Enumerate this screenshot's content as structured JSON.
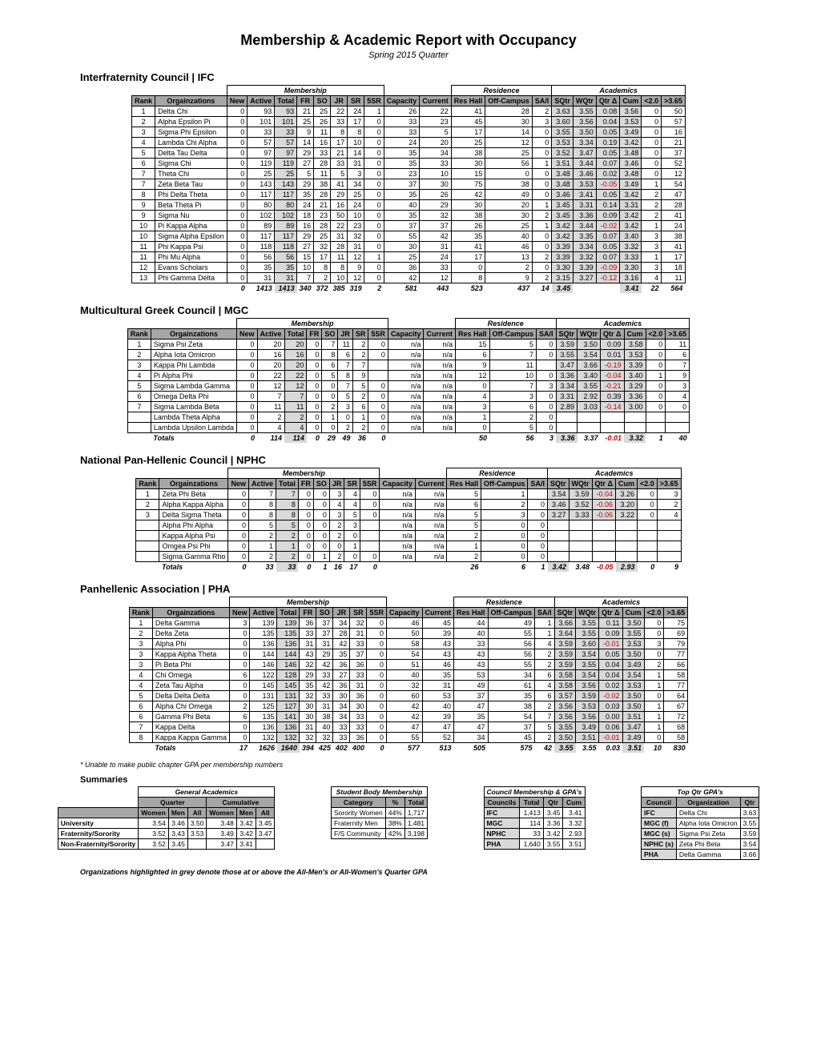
{
  "title": "Membership & Academic Report with Occupancy",
  "subtitle": "Spring 2015 Quarter",
  "col_hdrs": [
    "Rank",
    "Orgainzations",
    "New",
    "Active",
    "Total",
    "FR",
    "SO",
    "JR",
    "SR",
    "5SR",
    "Capacity",
    "Current",
    "Res Hall",
    "Off-Campus",
    "SA/I",
    "SQtr",
    "WQtr",
    "Qtr Δ",
    "Cum",
    "<2.0",
    ">3.65"
  ],
  "sections": [
    {
      "name": "Interfraternity Council | IFC",
      "rows": [
        [
          1,
          "Delta Chi",
          0,
          93,
          93,
          21,
          25,
          22,
          24,
          1,
          26,
          22,
          41,
          28,
          2,
          3.63,
          3.55,
          0.08,
          3.56,
          0,
          50
        ],
        [
          2,
          "Alpha Epsilon Pi",
          0,
          101,
          101,
          25,
          26,
          33,
          17,
          0,
          33,
          23,
          45,
          30,
          3,
          3.6,
          3.56,
          0.04,
          3.53,
          0,
          57
        ],
        [
          3,
          "Sigma Phi Epsilon",
          0,
          33,
          33,
          9,
          11,
          8,
          8,
          0,
          33,
          5,
          17,
          14,
          0,
          3.55,
          3.5,
          0.05,
          3.49,
          0,
          16
        ],
        [
          4,
          "Lambda Chi Alpha",
          0,
          57,
          57,
          14,
          16,
          17,
          10,
          0,
          24,
          20,
          25,
          12,
          0,
          3.53,
          3.34,
          0.19,
          3.42,
          0,
          21
        ],
        [
          5,
          "Delta Tau Delta",
          0,
          97,
          97,
          29,
          33,
          21,
          14,
          0,
          35,
          34,
          38,
          25,
          0,
          3.52,
          3.47,
          0.05,
          3.48,
          0,
          37
        ],
        [
          6,
          "Sigma Chi",
          0,
          119,
          119,
          27,
          28,
          33,
          31,
          0,
          35,
          33,
          30,
          56,
          1,
          3.51,
          3.44,
          0.07,
          3.46,
          0,
          52
        ],
        [
          7,
          "Theta Chi",
          0,
          25,
          25,
          5,
          11,
          5,
          3,
          0,
          23,
          10,
          15,
          0,
          0,
          3.48,
          3.46,
          0.02,
          3.48,
          0,
          12
        ],
        [
          7,
          "Zeta Beta Tau",
          0,
          143,
          143,
          29,
          38,
          41,
          34,
          0,
          37,
          30,
          75,
          38,
          0,
          3.48,
          3.53,
          -0.05,
          3.49,
          1,
          54
        ],
        [
          8,
          "Phi Delta Theta",
          0,
          117,
          117,
          35,
          28,
          29,
          25,
          0,
          35,
          26,
          42,
          49,
          0,
          3.46,
          3.41,
          0.05,
          3.42,
          2,
          47
        ],
        [
          9,
          "Beta Theta Pi",
          0,
          80,
          80,
          24,
          21,
          16,
          24,
          0,
          40,
          29,
          30,
          20,
          1,
          3.45,
          3.31,
          0.14,
          3.31,
          2,
          28
        ],
        [
          9,
          "Sigma Nu",
          0,
          102,
          102,
          18,
          23,
          50,
          10,
          0,
          35,
          32,
          38,
          30,
          2,
          3.45,
          3.36,
          0.09,
          3.42,
          2,
          41
        ],
        [
          10,
          "Pi Kappa Alpha",
          0,
          89,
          89,
          16,
          28,
          22,
          23,
          0,
          37,
          37,
          26,
          25,
          1,
          3.42,
          3.44,
          -0.02,
          3.42,
          1,
          24
        ],
        [
          10,
          "Sigma Alpha Epsilon",
          0,
          117,
          117,
          29,
          25,
          31,
          32,
          0,
          55,
          42,
          35,
          40,
          0,
          3.42,
          3.35,
          0.07,
          3.4,
          3,
          38
        ],
        [
          11,
          "Phi Kappa Psi",
          0,
          118,
          118,
          27,
          32,
          28,
          31,
          0,
          30,
          31,
          41,
          46,
          0,
          3.39,
          3.34,
          0.05,
          3.32,
          3,
          41
        ],
        [
          11,
          "Phi Mu Alpha",
          0,
          56,
          56,
          15,
          17,
          11,
          12,
          1,
          25,
          24,
          17,
          13,
          2,
          3.39,
          3.32,
          0.07,
          3.33,
          1,
          17
        ],
        [
          12,
          "Evans Scholars",
          0,
          35,
          35,
          10,
          8,
          8,
          9,
          0,
          36,
          33,
          0,
          2,
          0,
          3.3,
          3.39,
          -0.09,
          3.3,
          3,
          18
        ],
        [
          13,
          "Phi Gamma Delta",
          0,
          31,
          31,
          7,
          2,
          10,
          12,
          0,
          42,
          12,
          8,
          9,
          2,
          3.15,
          3.27,
          -0.12,
          3.16,
          4,
          11
        ]
      ],
      "totals": [
        "",
        "",
        0,
        1413,
        1413,
        340,
        372,
        385,
        319,
        2,
        581,
        443,
        523,
        437,
        14,
        3.45,
        "",
        "",
        3.41,
        22,
        564
      ],
      "hi_sqtr": 3.45,
      "hi_cum": 3.41
    },
    {
      "name": "Multicultural Greek Council | MGC",
      "rows": [
        [
          1,
          "Sigma Psi Zeta",
          0,
          20,
          20,
          0,
          7,
          11,
          2,
          0,
          "n/a",
          "n/a",
          15,
          5,
          0,
          3.59,
          3.5,
          0.09,
          3.58,
          0,
          11
        ],
        [
          2,
          "Alpha Iota Omicron",
          0,
          16,
          16,
          0,
          8,
          6,
          2,
          0,
          "n/a",
          "n/a",
          6,
          7,
          0,
          3.55,
          3.54,
          0.01,
          3.53,
          0,
          6
        ],
        [
          3,
          "Kappa Phi Lambda",
          0,
          20,
          20,
          0,
          6,
          7,
          7,
          "",
          "n/a",
          "n/a",
          9,
          11,
          "",
          3.47,
          3.66,
          -0.19,
          3.39,
          0,
          7
        ],
        [
          4,
          "Pi Alpha Phi",
          0,
          22,
          22,
          0,
          5,
          8,
          9,
          "",
          "n/a",
          "n/a",
          12,
          10,
          0,
          3.36,
          3.4,
          -0.04,
          3.4,
          1,
          9
        ],
        [
          5,
          "Sigma Lambda Gamma",
          0,
          12,
          12,
          0,
          0,
          7,
          5,
          0,
          "n/a",
          "n/a",
          0,
          7,
          3,
          3.34,
          3.55,
          -0.21,
          3.29,
          0,
          3
        ],
        [
          6,
          "Omega Delta Phi",
          0,
          7,
          7,
          0,
          0,
          5,
          2,
          0,
          "n/a",
          "n/a",
          4,
          3,
          0,
          3.31,
          2.92,
          0.39,
          3.36,
          0,
          4
        ],
        [
          7,
          "Sigma Lambda Beta",
          0,
          11,
          11,
          0,
          2,
          3,
          6,
          0,
          "n/a",
          "n/a",
          3,
          6,
          0,
          2.89,
          3.03,
          -0.14,
          3.0,
          0,
          0
        ],
        [
          "",
          "Lambda Theta Alpha",
          0,
          2,
          2,
          0,
          1,
          0,
          1,
          0,
          "n/a",
          "n/a",
          1,
          2,
          0,
          "",
          "",
          "",
          "",
          "",
          ""
        ],
        [
          "",
          "Lambda Upsilon Lambda",
          0,
          4,
          4,
          0,
          0,
          2,
          2,
          0,
          "n/a",
          "n/a",
          0,
          5,
          0,
          "",
          "",
          "",
          "",
          "",
          ""
        ]
      ],
      "totals": [
        "",
        "Totals",
        0,
        114,
        114,
        0,
        29,
        49,
        36,
        0,
        "",
        "",
        50,
        56,
        3,
        3.36,
        3.37,
        -0.01,
        3.32,
        1,
        40
      ],
      "hi_sqtr": 3.36,
      "hi_cum": 3.32
    },
    {
      "name": "National Pan-Hellenic Council | NPHC",
      "rows": [
        [
          1,
          "Zeta Phi Beta",
          0,
          7,
          7,
          0,
          0,
          3,
          4,
          0,
          "n/a",
          "n/a",
          5,
          1,
          "",
          3.54,
          3.59,
          -0.04,
          3.26,
          0,
          3
        ],
        [
          2,
          "Alpha Kappa Alpha",
          0,
          8,
          8,
          0,
          0,
          4,
          4,
          0,
          "n/a",
          "n/a",
          6,
          2,
          0,
          3.46,
          3.52,
          -0.06,
          3.2,
          0,
          2
        ],
        [
          3,
          "Delta Sigma Theta",
          0,
          8,
          8,
          0,
          0,
          3,
          5,
          0,
          "n/a",
          "n/a",
          5,
          3,
          0,
          3.27,
          3.33,
          -0.06,
          3.22,
          0,
          4
        ],
        [
          "",
          "Alpha Phi Alpha",
          0,
          5,
          5,
          0,
          0,
          2,
          3,
          "",
          "n/a",
          "n/a",
          5,
          0,
          0,
          "",
          "",
          "",
          "",
          "",
          ""
        ],
        [
          "",
          "Kappa Alpha Psi",
          0,
          2,
          2,
          0,
          0,
          2,
          0,
          "",
          "n/a",
          "n/a",
          2,
          0,
          0,
          "",
          "",
          "",
          "",
          "",
          ""
        ],
        [
          "",
          "Omgea Psi Phi",
          0,
          1,
          1,
          0,
          0,
          0,
          1,
          "",
          "n/a",
          "n/a",
          1,
          0,
          0,
          "",
          "",
          "",
          "",
          "",
          ""
        ],
        [
          "",
          "Sigma Gamma Rho",
          0,
          2,
          2,
          0,
          1,
          2,
          0,
          0,
          "n/a",
          "n/a",
          2,
          0,
          0,
          "",
          "",
          "",
          "",
          "",
          ""
        ]
      ],
      "totals": [
        "",
        "Totals",
        0,
        33,
        33,
        0,
        1,
        16,
        17,
        0,
        "",
        "",
        26,
        6,
        1,
        3.42,
        3.48,
        -0.05,
        2.93,
        0,
        9
      ],
      "hi_sqtr": 3.42,
      "hi_cum": 2.93
    },
    {
      "name": "Panhellenic Association | PHA",
      "rows": [
        [
          1,
          "Delta Gamma",
          3,
          139,
          139,
          36,
          37,
          34,
          32,
          0,
          46,
          45,
          44,
          49,
          1,
          3.66,
          3.55,
          0.11,
          3.5,
          0,
          75
        ],
        [
          2,
          "Delta Zeta",
          0,
          135,
          135,
          33,
          37,
          28,
          31,
          0,
          50,
          39,
          40,
          55,
          1,
          3.64,
          3.55,
          0.09,
          3.55,
          0,
          69
        ],
        [
          3,
          "Alpha Phi",
          0,
          136,
          136,
          31,
          31,
          42,
          33,
          0,
          58,
          43,
          33,
          56,
          4,
          3.59,
          3.6,
          -0.01,
          3.53,
          3,
          79
        ],
        [
          3,
          "Kappa Alpha Theta",
          0,
          144,
          144,
          43,
          29,
          35,
          37,
          0,
          54,
          43,
          43,
          56,
          2,
          3.59,
          3.54,
          0.05,
          3.5,
          0,
          77
        ],
        [
          3,
          "Pi Beta Phi",
          0,
          146,
          146,
          32,
          42,
          36,
          36,
          0,
          51,
          46,
          43,
          55,
          2,
          3.59,
          3.55,
          0.04,
          3.49,
          2,
          66
        ],
        [
          4,
          "Chi Omega",
          6,
          122,
          128,
          29,
          33,
          27,
          33,
          0,
          40,
          35,
          53,
          34,
          6,
          3.58,
          3.54,
          0.04,
          3.54,
          1,
          58
        ],
        [
          4,
          "Zeta Tau Alpha",
          0,
          145,
          145,
          35,
          42,
          36,
          31,
          0,
          32,
          31,
          49,
          61,
          4,
          3.58,
          3.56,
          0.02,
          3.53,
          1,
          77
        ],
        [
          5,
          "Delta Delta Delta",
          0,
          131,
          131,
          32,
          33,
          30,
          36,
          0,
          60,
          53,
          37,
          35,
          6,
          3.57,
          3.59,
          -0.02,
          3.5,
          0,
          64
        ],
        [
          6,
          "Alpha Chi Omega",
          2,
          125,
          127,
          30,
          31,
          34,
          30,
          0,
          42,
          40,
          47,
          38,
          2,
          3.56,
          3.53,
          0.03,
          3.5,
          1,
          67
        ],
        [
          6,
          "Gamma Phi Beta",
          6,
          135,
          141,
          30,
          38,
          34,
          33,
          0,
          42,
          39,
          35,
          54,
          7,
          3.56,
          3.56,
          0.0,
          3.51,
          1,
          72
        ],
        [
          7,
          "Kappa Delta",
          0,
          136,
          136,
          31,
          40,
          33,
          33,
          0,
          47,
          47,
          47,
          37,
          5,
          3.55,
          3.49,
          0.06,
          3.47,
          1,
          68
        ],
        [
          8,
          "Kappa Kappa Gamma",
          0,
          132,
          132,
          32,
          32,
          33,
          36,
          0,
          55,
          52,
          34,
          45,
          2,
          3.5,
          3.51,
          -0.01,
          3.49,
          0,
          58
        ]
      ],
      "totals": [
        "",
        "Totals",
        17,
        1626,
        1640,
        394,
        425,
        402,
        400,
        0,
        577,
        513,
        505,
        575,
        42,
        3.55,
        3.55,
        0.03,
        3.51,
        10,
        830
      ],
      "hi_sqtr": 3.55,
      "hi_cum": 3.51
    }
  ],
  "footnote": "* Unable to make public chapter GPA per membership numbers",
  "summ_title": "Summaries",
  "gen": {
    "title": "General Academics",
    "sub1": "Quarter",
    "sub2": "Cumulative",
    "cols": [
      "",
      "Women",
      "Men",
      "All",
      "Women",
      "Men",
      "All"
    ],
    "rows": [
      [
        "University",
        3.54,
        3.46,
        3.5,
        3.48,
        3.42,
        3.45
      ],
      [
        "Fraternity/Sorority",
        3.52,
        3.43,
        3.53,
        3.49,
        3.42,
        3.47
      ],
      [
        "Non-Fraternity/Sorority",
        3.52,
        3.45,
        "",
        3.47,
        3.41,
        ""
      ]
    ]
  },
  "sbm": {
    "title": "Student Body Membership",
    "cols": [
      "Category",
      "%",
      "Total"
    ],
    "rows": [
      [
        "Sorority Women",
        "44%",
        "1,717"
      ],
      [
        "Fraternity Men",
        "38%",
        "1,481"
      ],
      [
        "F/S Community",
        "42%",
        "3,198"
      ]
    ]
  },
  "cmg": {
    "title": "Council Membership & GPA's",
    "cols": [
      "Councils",
      "Total",
      "Qtr",
      "Cum"
    ],
    "rows": [
      [
        "IFC",
        "1,413",
        3.45,
        3.41
      ],
      [
        "MGC",
        114,
        3.36,
        3.32
      ],
      [
        "NPHC",
        33,
        3.42,
        2.93
      ],
      [
        "PHA",
        "1,640",
        3.55,
        3.51
      ]
    ]
  },
  "top": {
    "title": "Top Qtr GPA's",
    "cols": [
      "Council",
      "Organization",
      "Qtr"
    ],
    "rows": [
      [
        "IFC",
        "Delta Chi",
        3.63
      ],
      [
        "MGC (f)",
        "Alpha Iota Omicron",
        3.55
      ],
      [
        "MGC (s)",
        "Sigma Psi Zeta",
        3.59
      ],
      [
        "NPHC (s)",
        "Zeta Phi Beta",
        3.54
      ],
      [
        "PHA",
        "Delta Gamma",
        3.66
      ]
    ]
  },
  "disclaimer": "Organizations highlighted in grey denote those at or above the All-Men's or All-Women's Quarter GPA"
}
